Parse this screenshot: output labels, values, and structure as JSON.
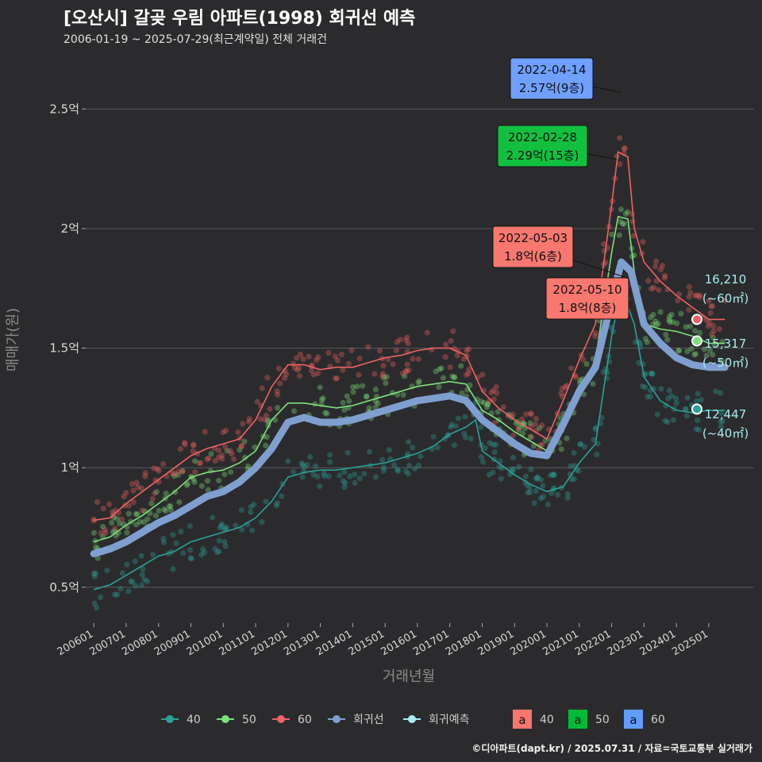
{
  "chart_data": {
    "type": "scatter",
    "title": "[오산시] 갈곶 우림 아파트(1998) 회귀선 예측",
    "subtitle": "2006-01-19 ~ 2025-07-29(최근계약일) 전체 거래건",
    "xlabel": "거래년월",
    "ylabel": "매매가(원)",
    "x_ticks": [
      "200601",
      "200701",
      "200801",
      "200901",
      "201001",
      "201101",
      "201201",
      "201301",
      "201401",
      "201501",
      "201601",
      "201701",
      "201801",
      "201901",
      "202001",
      "202101",
      "202201",
      "202301",
      "202401",
      "202501"
    ],
    "y_ticks": [
      {
        "value": 0.5,
        "label": "0.5억"
      },
      {
        "value": 1.0,
        "label": "1억"
      },
      {
        "value": 1.5,
        "label": "1.5억"
      },
      {
        "value": 2.0,
        "label": "2억"
      },
      {
        "value": 2.5,
        "label": "2.5억"
      }
    ],
    "xlim": [
      2005.75,
      2026.4
    ],
    "ylim": [
      0.35,
      2.75
    ],
    "grid": true,
    "legend_position": "bottom",
    "colors": {
      "40": "#2aa198",
      "50": "#7fe07a",
      "60": "#f06262",
      "trend": "#7f9fd0",
      "forecast": "#a9ecf0"
    },
    "series": [
      {
        "name": "40",
        "points": [
          [
            2006.0,
            0.49
          ],
          [
            2006.5,
            0.51
          ],
          [
            2007.0,
            0.55
          ],
          [
            2007.5,
            0.59
          ],
          [
            2008.0,
            0.63
          ],
          [
            2008.5,
            0.65
          ],
          [
            2009.0,
            0.69
          ],
          [
            2009.5,
            0.71
          ],
          [
            2010.0,
            0.73
          ],
          [
            2010.5,
            0.75
          ],
          [
            2011.0,
            0.79
          ],
          [
            2011.5,
            0.86
          ],
          [
            2012.0,
            0.96
          ],
          [
            2012.5,
            0.98
          ],
          [
            2013.0,
            0.99
          ],
          [
            2013.5,
            0.99
          ],
          [
            2014.0,
            1.0
          ],
          [
            2014.5,
            1.01
          ],
          [
            2015.0,
            1.02
          ],
          [
            2015.5,
            1.04
          ],
          [
            2016.0,
            1.06
          ],
          [
            2016.5,
            1.09
          ],
          [
            2017.0,
            1.14
          ],
          [
            2017.5,
            1.17
          ],
          [
            2017.8,
            1.2
          ],
          [
            2018.0,
            1.07
          ],
          [
            2018.5,
            1.02
          ],
          [
            2019.0,
            0.97
          ],
          [
            2019.5,
            0.93
          ],
          [
            2020.0,
            0.9
          ],
          [
            2020.5,
            0.92
          ],
          [
            2021.0,
            1.02
          ],
          [
            2021.5,
            1.1
          ],
          [
            2022.0,
            1.55
          ],
          [
            2022.3,
            1.75
          ],
          [
            2022.7,
            1.6
          ],
          [
            2023.0,
            1.38
          ],
          [
            2023.5,
            1.28
          ],
          [
            2024.0,
            1.24
          ],
          [
            2024.5,
            1.23
          ],
          [
            2025.0,
            1.24
          ],
          [
            2025.5,
            1.24
          ]
        ]
      },
      {
        "name": "50",
        "points": [
          [
            2006.0,
            0.69
          ],
          [
            2006.5,
            0.71
          ],
          [
            2007.0,
            0.76
          ],
          [
            2007.5,
            0.8
          ],
          [
            2008.0,
            0.85
          ],
          [
            2008.5,
            0.9
          ],
          [
            2009.0,
            0.96
          ],
          [
            2009.5,
            0.98
          ],
          [
            2010.0,
            0.99
          ],
          [
            2010.5,
            1.02
          ],
          [
            2011.0,
            1.07
          ],
          [
            2011.5,
            1.2
          ],
          [
            2012.0,
            1.27
          ],
          [
            2012.5,
            1.27
          ],
          [
            2013.0,
            1.26
          ],
          [
            2013.5,
            1.25
          ],
          [
            2014.0,
            1.26
          ],
          [
            2014.5,
            1.28
          ],
          [
            2015.0,
            1.3
          ],
          [
            2015.5,
            1.32
          ],
          [
            2016.0,
            1.34
          ],
          [
            2016.5,
            1.35
          ],
          [
            2017.0,
            1.36
          ],
          [
            2017.5,
            1.35
          ],
          [
            2018.0,
            1.24
          ],
          [
            2018.5,
            1.2
          ],
          [
            2019.0,
            1.15
          ],
          [
            2019.5,
            1.11
          ],
          [
            2020.0,
            1.07
          ],
          [
            2020.5,
            1.15
          ],
          [
            2021.0,
            1.32
          ],
          [
            2021.5,
            1.45
          ],
          [
            2022.0,
            1.9
          ],
          [
            2022.2,
            2.05
          ],
          [
            2022.5,
            2.04
          ],
          [
            2022.7,
            1.82
          ],
          [
            2023.0,
            1.6
          ],
          [
            2023.5,
            1.58
          ],
          [
            2024.0,
            1.57
          ],
          [
            2024.5,
            1.55
          ],
          [
            2025.0,
            1.52
          ],
          [
            2025.5,
            1.52
          ]
        ]
      },
      {
        "name": "60",
        "points": [
          [
            2006.0,
            0.78
          ],
          [
            2006.5,
            0.79
          ],
          [
            2007.0,
            0.85
          ],
          [
            2007.5,
            0.9
          ],
          [
            2008.0,
            0.95
          ],
          [
            2008.5,
            1.0
          ],
          [
            2009.0,
            1.05
          ],
          [
            2009.5,
            1.08
          ],
          [
            2010.0,
            1.1
          ],
          [
            2010.5,
            1.12
          ],
          [
            2011.0,
            1.2
          ],
          [
            2011.5,
            1.34
          ],
          [
            2012.0,
            1.43
          ],
          [
            2012.5,
            1.43
          ],
          [
            2013.0,
            1.41
          ],
          [
            2013.5,
            1.42
          ],
          [
            2014.0,
            1.42
          ],
          [
            2014.5,
            1.44
          ],
          [
            2015.0,
            1.46
          ],
          [
            2015.5,
            1.47
          ],
          [
            2016.0,
            1.49
          ],
          [
            2016.5,
            1.5
          ],
          [
            2017.0,
            1.5
          ],
          [
            2017.5,
            1.47
          ],
          [
            2018.0,
            1.32
          ],
          [
            2018.5,
            1.25
          ],
          [
            2019.0,
            1.2
          ],
          [
            2019.5,
            1.16
          ],
          [
            2020.0,
            1.12
          ],
          [
            2020.5,
            1.28
          ],
          [
            2021.0,
            1.45
          ],
          [
            2021.5,
            1.6
          ],
          [
            2022.0,
            2.1
          ],
          [
            2022.2,
            2.32
          ],
          [
            2022.5,
            2.3
          ],
          [
            2022.7,
            2.0
          ],
          [
            2023.0,
            1.86
          ],
          [
            2023.5,
            1.78
          ],
          [
            2024.0,
            1.72
          ],
          [
            2024.5,
            1.67
          ],
          [
            2025.0,
            1.62
          ],
          [
            2025.5,
            1.62
          ]
        ]
      },
      {
        "name": "회귀선",
        "points": [
          [
            2006.0,
            0.64
          ],
          [
            2006.5,
            0.66
          ],
          [
            2007.0,
            0.69
          ],
          [
            2007.5,
            0.73
          ],
          [
            2008.0,
            0.77
          ],
          [
            2008.5,
            0.8
          ],
          [
            2009.0,
            0.84
          ],
          [
            2009.5,
            0.88
          ],
          [
            2010.0,
            0.9
          ],
          [
            2010.5,
            0.94
          ],
          [
            2011.0,
            1.0
          ],
          [
            2011.5,
            1.08
          ],
          [
            2012.0,
            1.19
          ],
          [
            2012.5,
            1.21
          ],
          [
            2013.0,
            1.19
          ],
          [
            2013.5,
            1.19
          ],
          [
            2014.0,
            1.2
          ],
          [
            2014.5,
            1.22
          ],
          [
            2015.0,
            1.24
          ],
          [
            2015.5,
            1.26
          ],
          [
            2016.0,
            1.28
          ],
          [
            2016.5,
            1.29
          ],
          [
            2017.0,
            1.3
          ],
          [
            2017.5,
            1.28
          ],
          [
            2018.0,
            1.2
          ],
          [
            2018.5,
            1.15
          ],
          [
            2019.0,
            1.1
          ],
          [
            2019.5,
            1.06
          ],
          [
            2020.0,
            1.05
          ],
          [
            2020.5,
            1.18
          ],
          [
            2021.0,
            1.32
          ],
          [
            2021.5,
            1.42
          ],
          [
            2022.0,
            1.7
          ],
          [
            2022.3,
            1.86
          ],
          [
            2022.6,
            1.82
          ],
          [
            2023.0,
            1.6
          ],
          [
            2023.5,
            1.52
          ],
          [
            2024.0,
            1.46
          ],
          [
            2024.5,
            1.43
          ],
          [
            2025.0,
            1.42
          ],
          [
            2025.5,
            1.42
          ]
        ]
      },
      {
        "name": "회귀예측",
        "points": []
      }
    ],
    "legend": [
      {
        "label": "40",
        "color": "#2aa198",
        "kind": "line-point"
      },
      {
        "label": "50",
        "color": "#7fe07a",
        "kind": "line-point"
      },
      {
        "label": "60",
        "color": "#f06262",
        "kind": "line-point"
      },
      {
        "label": "회귀선",
        "color": "#7f9fd0",
        "kind": "line-point"
      },
      {
        "label": "회귀예측",
        "color": "#a9ecf0",
        "kind": "line-point"
      }
    ],
    "label_legend": [
      {
        "label": "40",
        "glyph": "a",
        "color": "#f8766d"
      },
      {
        "label": "50",
        "glyph": "a",
        "color": "#00ba38"
      },
      {
        "label": "60",
        "glyph": "a",
        "color": "#619cff"
      }
    ],
    "annotations": [
      {
        "date": "2022-04-14",
        "price": "2.57억(9층)",
        "x": 2022.29,
        "y": 2.57,
        "color": "#6fa0ff",
        "pos": "above-left"
      },
      {
        "date": "2022-02-28",
        "price": "2.29억(15층)",
        "x": 2022.16,
        "y": 2.29,
        "color": "#12c040",
        "pos": "left"
      },
      {
        "date": "2022-05-03",
        "price": "1.8억(6층)",
        "x": 2022.34,
        "y": 1.8,
        "color": "#f8776f",
        "pos": "left-up"
      },
      {
        "date": "2022-05-10",
        "price": "1.8억(8층)",
        "x": 2022.36,
        "y": 1.8,
        "color": "#f8776f",
        "pos": "below"
      }
    ],
    "end_labels": [
      {
        "value": "16,210",
        "area": "(~60㎡)",
        "y": 1.62,
        "color": "#f06262"
      },
      {
        "value": "15,317",
        "area": "(~50㎡)",
        "y": 1.53,
        "color": "#7fe07a"
      },
      {
        "value": "12,447",
        "area": "(~40㎡)",
        "y": 1.245,
        "color": "#2aa198"
      }
    ],
    "caption": "©디아파트(dapt.kr) / 2025.07.31 / 자료=국토교통부 실거래가"
  }
}
